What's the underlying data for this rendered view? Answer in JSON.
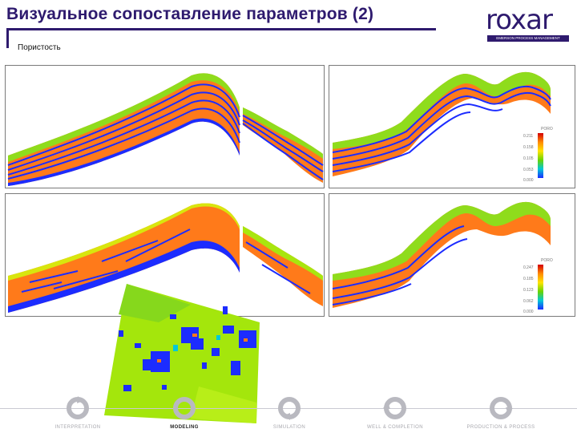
{
  "header": {
    "title": "Визуальное сопоставление параметров (2)",
    "subtitle": "Пористость"
  },
  "logo": {
    "text": "roxar",
    "tagline": "EMERSON PROCESS MANAGEMENT"
  },
  "legends": {
    "top_right": {
      "title": "PORO",
      "values": [
        "0.211",
        "0.158",
        "0.105",
        "0.053",
        "0.000"
      ]
    },
    "bottom_right": {
      "title": "PORO",
      "values": [
        "0.247",
        "0.185",
        "0.123",
        "0.062",
        "0.000"
      ]
    }
  },
  "colors": {
    "brand": "#2e1a6e",
    "blue": "#1c2cff",
    "orange": "#ff7a1a",
    "green": "#5fd42a",
    "lime": "#a8e60e"
  },
  "stages": [
    {
      "label": "INTERPRETATION",
      "active": false
    },
    {
      "label": "MODELING",
      "active": true
    },
    {
      "label": "SIMULATION",
      "active": false
    },
    {
      "label": "WELL & COMPLETION",
      "active": false
    },
    {
      "label": "PRODUCTION & PROCESS",
      "active": false
    }
  ]
}
